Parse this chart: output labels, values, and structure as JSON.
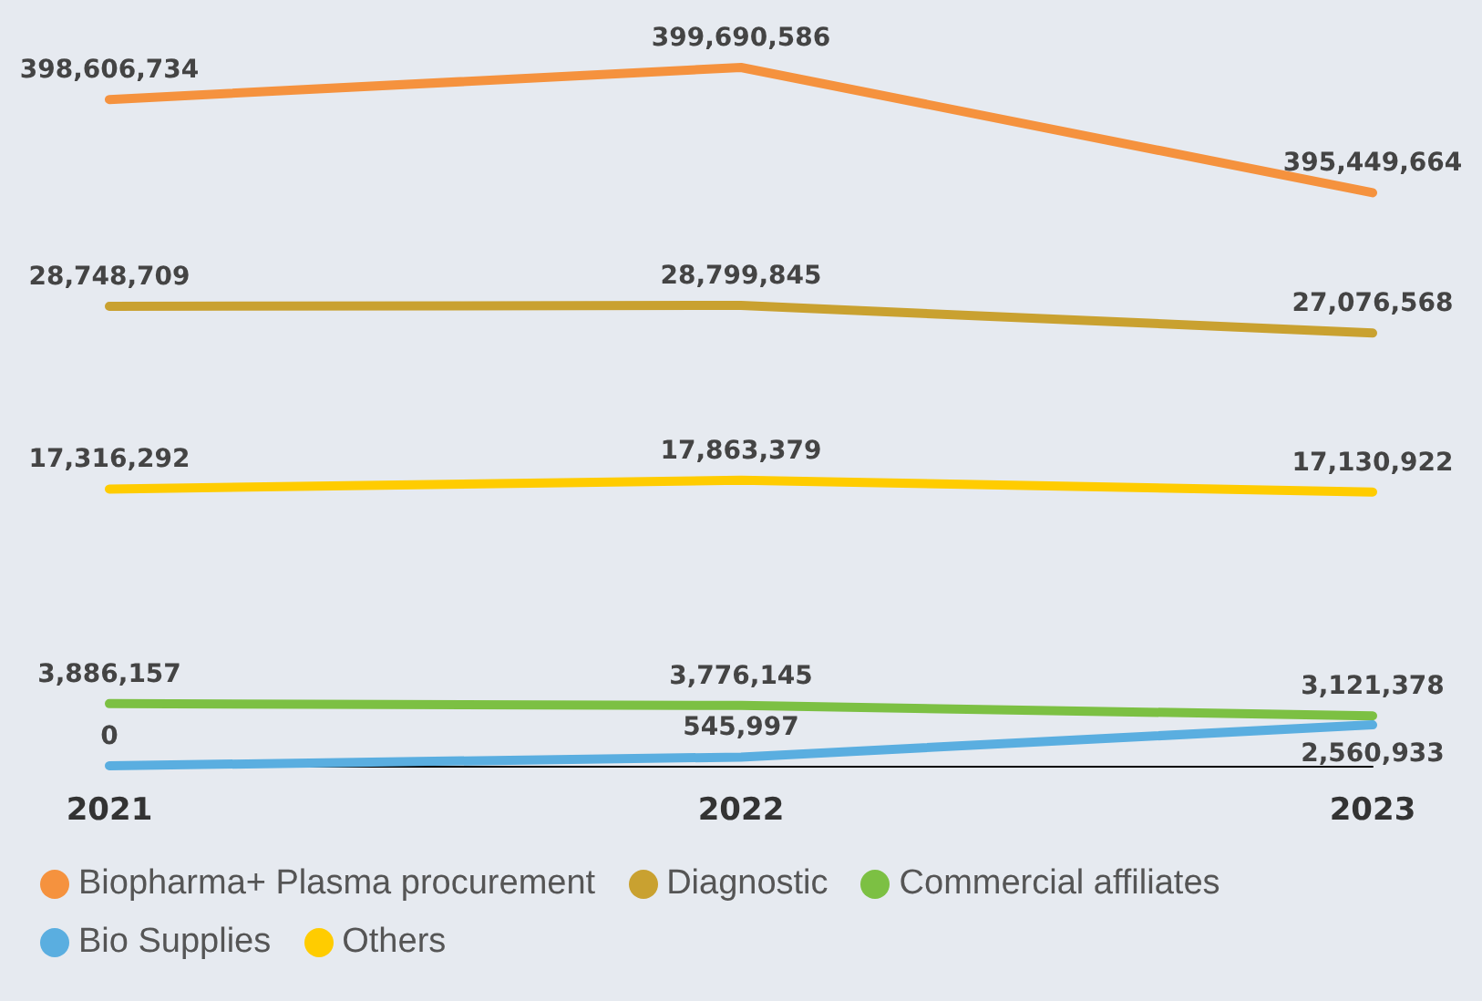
{
  "chart_data": [
    {
      "type": "line",
      "categories": [
        "2021",
        "2022",
        "2023"
      ],
      "series": [
        {
          "name": "Biopharma+ Plasma procurement",
          "color": "#f5923e",
          "values": [
            398606734,
            399690586,
            395449664
          ],
          "value_labels": [
            "398,606,734",
            "399,690,586",
            "395,449,664"
          ]
        }
      ],
      "grid": false,
      "marker": "none",
      "line_style": "solid",
      "tick_labels": false
    },
    {
      "type": "line",
      "categories": [
        "2021",
        "2022",
        "2023"
      ],
      "series": [
        {
          "name": "Diagnostic",
          "color": "#c9a130",
          "values": [
            28748709,
            28799845,
            27076568
          ],
          "value_labels": [
            "28,748,709",
            "28,799,845",
            "27,076,568"
          ]
        },
        {
          "name": "Commercial affiliates",
          "color": "#7cc043",
          "values": [
            3886157,
            3776145,
            3121378
          ],
          "value_labels": [
            "3,886,157",
            "3,776,145",
            "3,121,378"
          ]
        },
        {
          "name": "Bio Supplies",
          "color": "#5aaee0",
          "values": [
            0,
            545997,
            2560933
          ],
          "value_labels": [
            "0",
            "545,997",
            "2,560,933"
          ]
        },
        {
          "name": "Others",
          "color": "#ffcc00",
          "values": [
            17316292,
            17863379,
            17130922
          ],
          "value_labels": [
            "17,316,292",
            "17,863,379",
            "17,130,922"
          ]
        }
      ],
      "legend": "bottom left",
      "grid": false,
      "marker": "none",
      "line_style": "solid",
      "tick_labels": "x"
    }
  ]
}
